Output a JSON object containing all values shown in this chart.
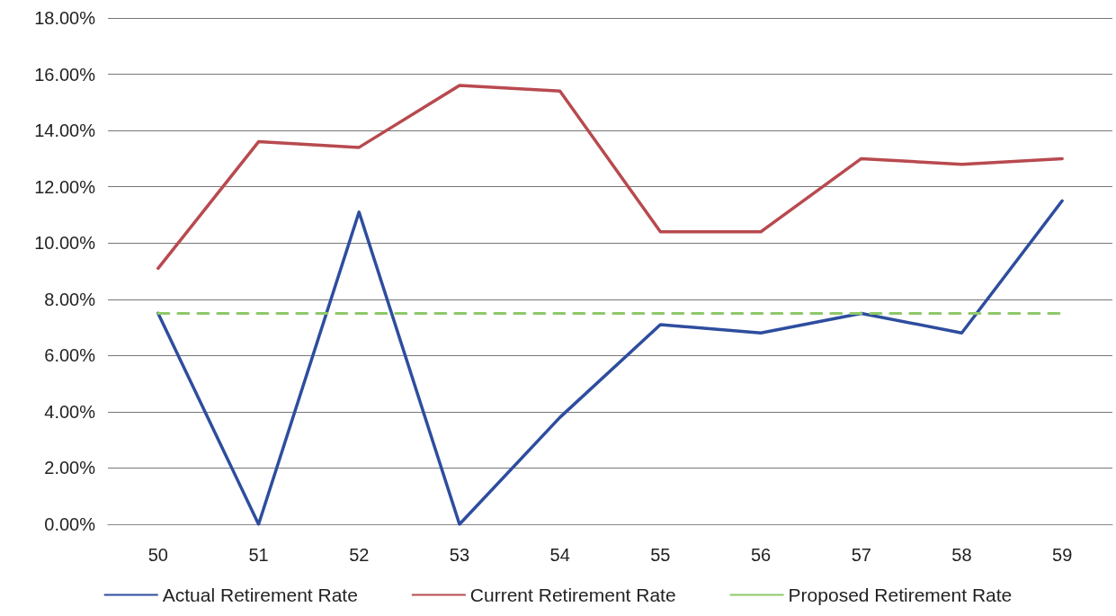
{
  "chart_data": {
    "type": "line",
    "categories": [
      "50",
      "51",
      "52",
      "53",
      "54",
      "55",
      "56",
      "57",
      "58",
      "59"
    ],
    "series": [
      {
        "name": "Actual Retirement Rate",
        "color": "#2e4d9e",
        "values": [
          7.5,
          0,
          11.1,
          0,
          3.8,
          7.1,
          6.8,
          7.5,
          6.8,
          11.5
        ]
      },
      {
        "name": "Current Retirement Rate",
        "color": "#b84a4f",
        "values": [
          9.1,
          13.6,
          13.4,
          15.6,
          15.4,
          10.4,
          10.4,
          13.0,
          12.8,
          13.0
        ]
      },
      {
        "name": "Proposed Retirement Rate",
        "color": "#8fc86a",
        "line_style": "dashed",
        "values": [
          7.5,
          7.5,
          7.5,
          7.5,
          7.5,
          7.5,
          7.5,
          7.5,
          7.5,
          7.5
        ]
      }
    ],
    "ylim": [
      0,
      18
    ],
    "yticks": [
      {
        "value": 0,
        "label": "0.00%"
      },
      {
        "value": 2,
        "label": "2.00%"
      },
      {
        "value": 4,
        "label": "4.00%"
      },
      {
        "value": 6,
        "label": "6.00%"
      },
      {
        "value": 8,
        "label": "8.00%"
      },
      {
        "value": 10,
        "label": "10.00%"
      },
      {
        "value": 12,
        "label": "12.00%"
      },
      {
        "value": 14,
        "label": "14.00%"
      },
      {
        "value": 16,
        "label": "16.00%"
      },
      {
        "value": 18,
        "label": "18.00%"
      }
    ],
    "grid": "y",
    "legend": "bottom",
    "marker": "none",
    "line_style": "solid"
  }
}
